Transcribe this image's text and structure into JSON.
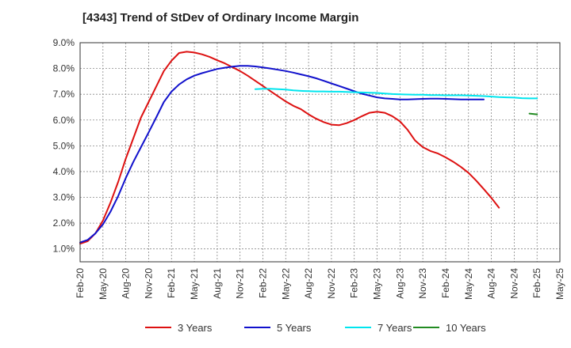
{
  "chart_data": {
    "type": "line",
    "title": "[4343]  Trend of StDev of Ordinary Income Margin",
    "xlabel": "",
    "ylabel": "",
    "x_tick_labels": [
      "Feb-20",
      "May-20",
      "Aug-20",
      "Nov-20",
      "Feb-21",
      "May-21",
      "Aug-21",
      "Nov-21",
      "Feb-22",
      "May-22",
      "Aug-22",
      "Nov-22",
      "Feb-23",
      "May-23",
      "Aug-23",
      "Nov-23",
      "Feb-24",
      "May-24",
      "Aug-24",
      "Nov-24",
      "Feb-25",
      "May-25"
    ],
    "y_tick_labels": [
      "1.0%",
      "2.0%",
      "3.0%",
      "4.0%",
      "5.0%",
      "6.0%",
      "7.0%",
      "8.0%",
      "9.0%"
    ],
    "y_ticks": [
      1,
      2,
      3,
      4,
      5,
      6,
      7,
      8,
      9
    ],
    "ylim": [
      0.5,
      9.0
    ],
    "x_range": [
      "Feb-20",
      "May-25"
    ],
    "grid": true,
    "legend_position": "bottom",
    "series": [
      {
        "name": "3 Years",
        "color": "#dd1111",
        "start_month": "Feb-20",
        "values": [
          1.2,
          1.3,
          1.6,
          2.1,
          2.8,
          3.6,
          4.5,
          5.3,
          6.1,
          6.7,
          7.3,
          7.9,
          8.3,
          8.6,
          8.65,
          8.62,
          8.55,
          8.45,
          8.32,
          8.2,
          8.05,
          7.9,
          7.72,
          7.52,
          7.32,
          7.12,
          6.92,
          6.72,
          6.55,
          6.42,
          6.22,
          6.05,
          5.92,
          5.82,
          5.8,
          5.88,
          6.0,
          6.15,
          6.28,
          6.32,
          6.28,
          6.15,
          5.95,
          5.62,
          5.2,
          4.95,
          4.8,
          4.7,
          4.55,
          4.38,
          4.18,
          3.95,
          3.65,
          3.32,
          2.98,
          2.6
        ]
      },
      {
        "name": "5 Years",
        "color": "#1111cc",
        "start_month": "Feb-20",
        "values": [
          1.25,
          1.35,
          1.6,
          1.95,
          2.45,
          3.05,
          3.75,
          4.38,
          4.95,
          5.52,
          6.1,
          6.7,
          7.1,
          7.38,
          7.58,
          7.72,
          7.82,
          7.9,
          7.98,
          8.03,
          8.07,
          8.1,
          8.1,
          8.08,
          8.04,
          8.0,
          7.95,
          7.9,
          7.84,
          7.77,
          7.7,
          7.62,
          7.52,
          7.42,
          7.32,
          7.22,
          7.12,
          7.02,
          6.95,
          6.88,
          6.84,
          6.82,
          6.8,
          6.8,
          6.81,
          6.82,
          6.83,
          6.83,
          6.82,
          6.81,
          6.8,
          6.8,
          6.8,
          6.8
        ]
      },
      {
        "name": "7 Years",
        "color": "#00e5ee",
        "start_month": "Jan-22",
        "values": [
          7.2,
          7.21,
          7.21,
          7.2,
          7.18,
          7.15,
          7.13,
          7.12,
          7.11,
          7.11,
          7.1,
          7.1,
          7.09,
          7.08,
          7.07,
          7.06,
          7.05,
          7.03,
          7.01,
          7.0,
          6.99,
          6.98,
          6.98,
          6.97,
          6.97,
          6.96,
          6.96,
          6.96,
          6.95,
          6.94,
          6.93,
          6.91,
          6.89,
          6.88,
          6.87,
          6.85,
          6.84,
          6.84
        ]
      },
      {
        "name": "10 Years",
        "color": "#228b22",
        "start_month": "Jan-25",
        "values": [
          6.25,
          6.22
        ]
      }
    ]
  }
}
